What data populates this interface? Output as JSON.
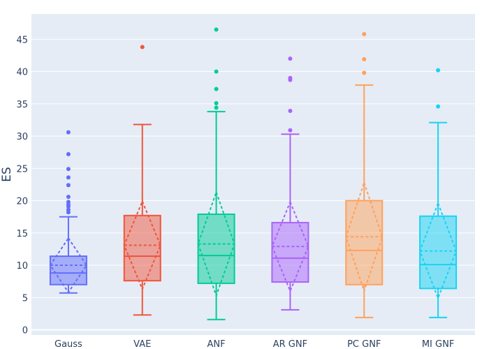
{
  "chart_data": {
    "type": "box",
    "title": "",
    "xlabel": "",
    "ylabel": "ES",
    "ylim": [
      -1,
      49
    ],
    "y_ticks": [
      0,
      5,
      10,
      15,
      20,
      25,
      30,
      35,
      40,
      45
    ],
    "grid": true,
    "legend": "none",
    "background": "#e5ecf6",
    "categories": [
      "Gauss",
      "VAE",
      "ANF",
      "AR GNF",
      "PC GNF",
      "MI GNF"
    ],
    "series": [
      {
        "category": "Gauss",
        "color": "#636efa",
        "lower_whisker": 5.7,
        "q1": 7.0,
        "median": 8.8,
        "q3": 11.4,
        "upper_whisker": 17.5,
        "mean": 10.0,
        "sd_low": 5.8,
        "sd_high": 14.2,
        "outliers": [
          18.2,
          18.6,
          19.1,
          19.4,
          19.8,
          20.6,
          22.4,
          23.6,
          24.9,
          27.2,
          30.6
        ]
      },
      {
        "category": "VAE",
        "color": "#ef553b",
        "lower_whisker": 2.3,
        "q1": 7.6,
        "median": 11.4,
        "q3": 17.7,
        "upper_whisker": 31.8,
        "mean": 13.1,
        "sd_low": 6.3,
        "sd_high": 19.9,
        "outliers": [
          43.8
        ]
      },
      {
        "category": "ANF",
        "color": "#00cc96",
        "lower_whisker": 1.6,
        "q1": 7.2,
        "median": 11.5,
        "q3": 17.9,
        "upper_whisker": 33.8,
        "mean": 13.3,
        "sd_low": 5.3,
        "sd_high": 21.3,
        "outliers": [
          34.4,
          35.1,
          37.3,
          40.0,
          46.5
        ]
      },
      {
        "category": "AR GNF",
        "color": "#ab63fa",
        "lower_whisker": 3.1,
        "q1": 7.4,
        "median": 11.1,
        "q3": 16.6,
        "upper_whisker": 30.3,
        "mean": 12.9,
        "sd_low": 6.0,
        "sd_high": 19.8,
        "outliers": [
          30.9,
          33.9,
          38.7,
          39.0,
          42.0
        ]
      },
      {
        "category": "PC GNF",
        "color": "#ffa15a",
        "lower_whisker": 1.9,
        "q1": 7.0,
        "median": 12.3,
        "q3": 20.0,
        "upper_whisker": 37.9,
        "mean": 14.4,
        "sd_low": 6.0,
        "sd_high": 22.8,
        "outliers": [
          39.8,
          41.9,
          45.8
        ]
      },
      {
        "category": "MI GNF",
        "color": "#19d3f3",
        "lower_whisker": 1.9,
        "q1": 6.4,
        "median": 10.1,
        "q3": 17.6,
        "upper_whisker": 32.1,
        "mean": 12.2,
        "sd_low": 4.9,
        "sd_high": 19.6,
        "outliers": [
          34.6,
          40.2
        ]
      }
    ]
  }
}
